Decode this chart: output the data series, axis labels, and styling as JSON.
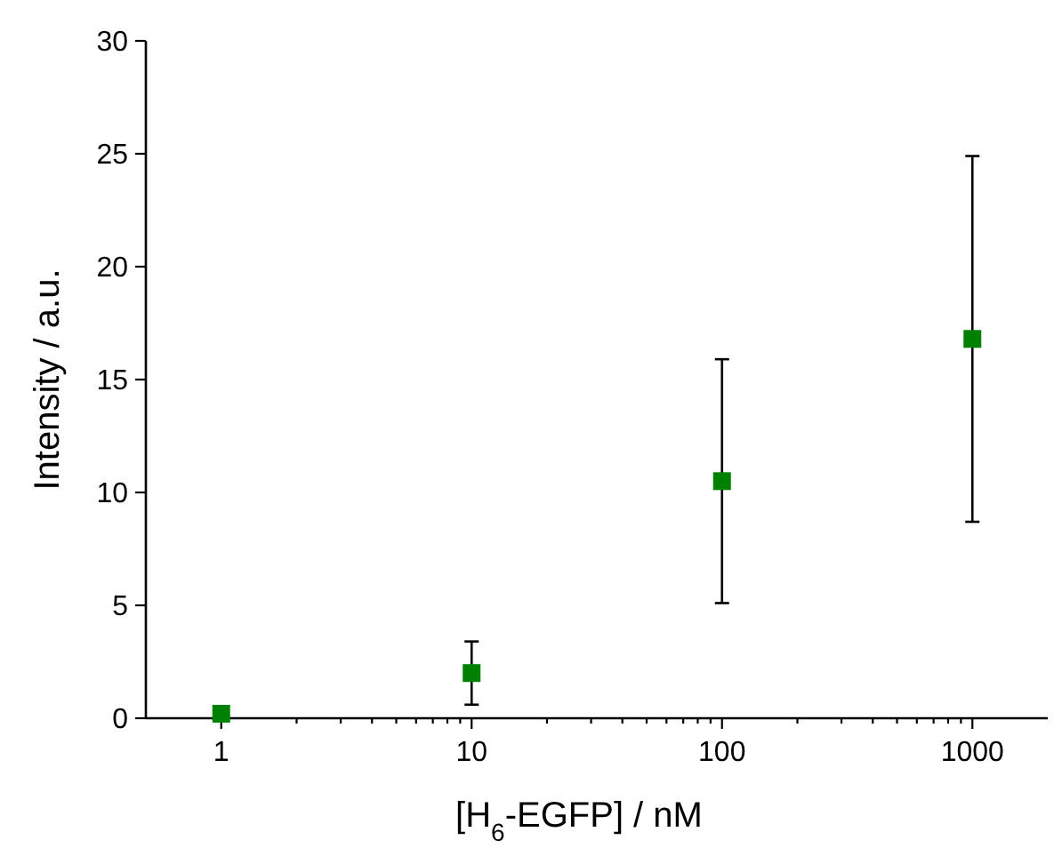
{
  "chart_data": {
    "type": "scatter",
    "xlabel": "[H$_{6}$-EGFP] / nM",
    "ylabel": "Intensity / a.u.",
    "log": "x",
    "marker": "square",
    "grid": false,
    "x": [
      1,
      10,
      100,
      1000
    ],
    "series": [
      {
        "color": "#008000",
        "values": [
          0.2,
          2.0,
          10.5,
          16.8
        ],
        "errors": [
          null,
          1.4,
          5.4,
          8.1
        ]
      }
    ],
    "xlim": [
      0.5,
      2000
    ],
    "xticks": [
      1,
      {
        "value": 2,
        "label": null
      },
      {
        "value": 3,
        "label": null
      },
      {
        "value": 4,
        "label": null
      },
      {
        "value": 5,
        "label": null
      },
      {
        "value": 6,
        "label": null
      },
      {
        "value": 7,
        "label": null
      },
      {
        "value": 8,
        "label": null
      },
      {
        "value": 9,
        "label": null
      },
      10,
      {
        "value": 20,
        "label": null
      },
      {
        "value": 30,
        "label": null
      },
      {
        "value": 40,
        "label": null
      },
      {
        "value": 50,
        "label": null
      },
      {
        "value": 60,
        "label": null
      },
      {
        "value": 70,
        "label": null
      },
      {
        "value": 80,
        "label": null
      },
      {
        "value": 90,
        "label": null
      },
      100,
      {
        "value": 200,
        "label": null
      },
      {
        "value": 300,
        "label": null
      },
      {
        "value": 400,
        "label": null
      },
      {
        "value": 500,
        "label": null
      },
      {
        "value": 600,
        "label": null
      },
      {
        "value": 700,
        "label": null
      },
      {
        "value": 800,
        "label": null
      },
      {
        "value": 900,
        "label": null
      },
      1000
    ],
    "ylim": [
      0,
      30
    ],
    "yticks": [
      0,
      5,
      10,
      15,
      20,
      25,
      30
    ]
  }
}
